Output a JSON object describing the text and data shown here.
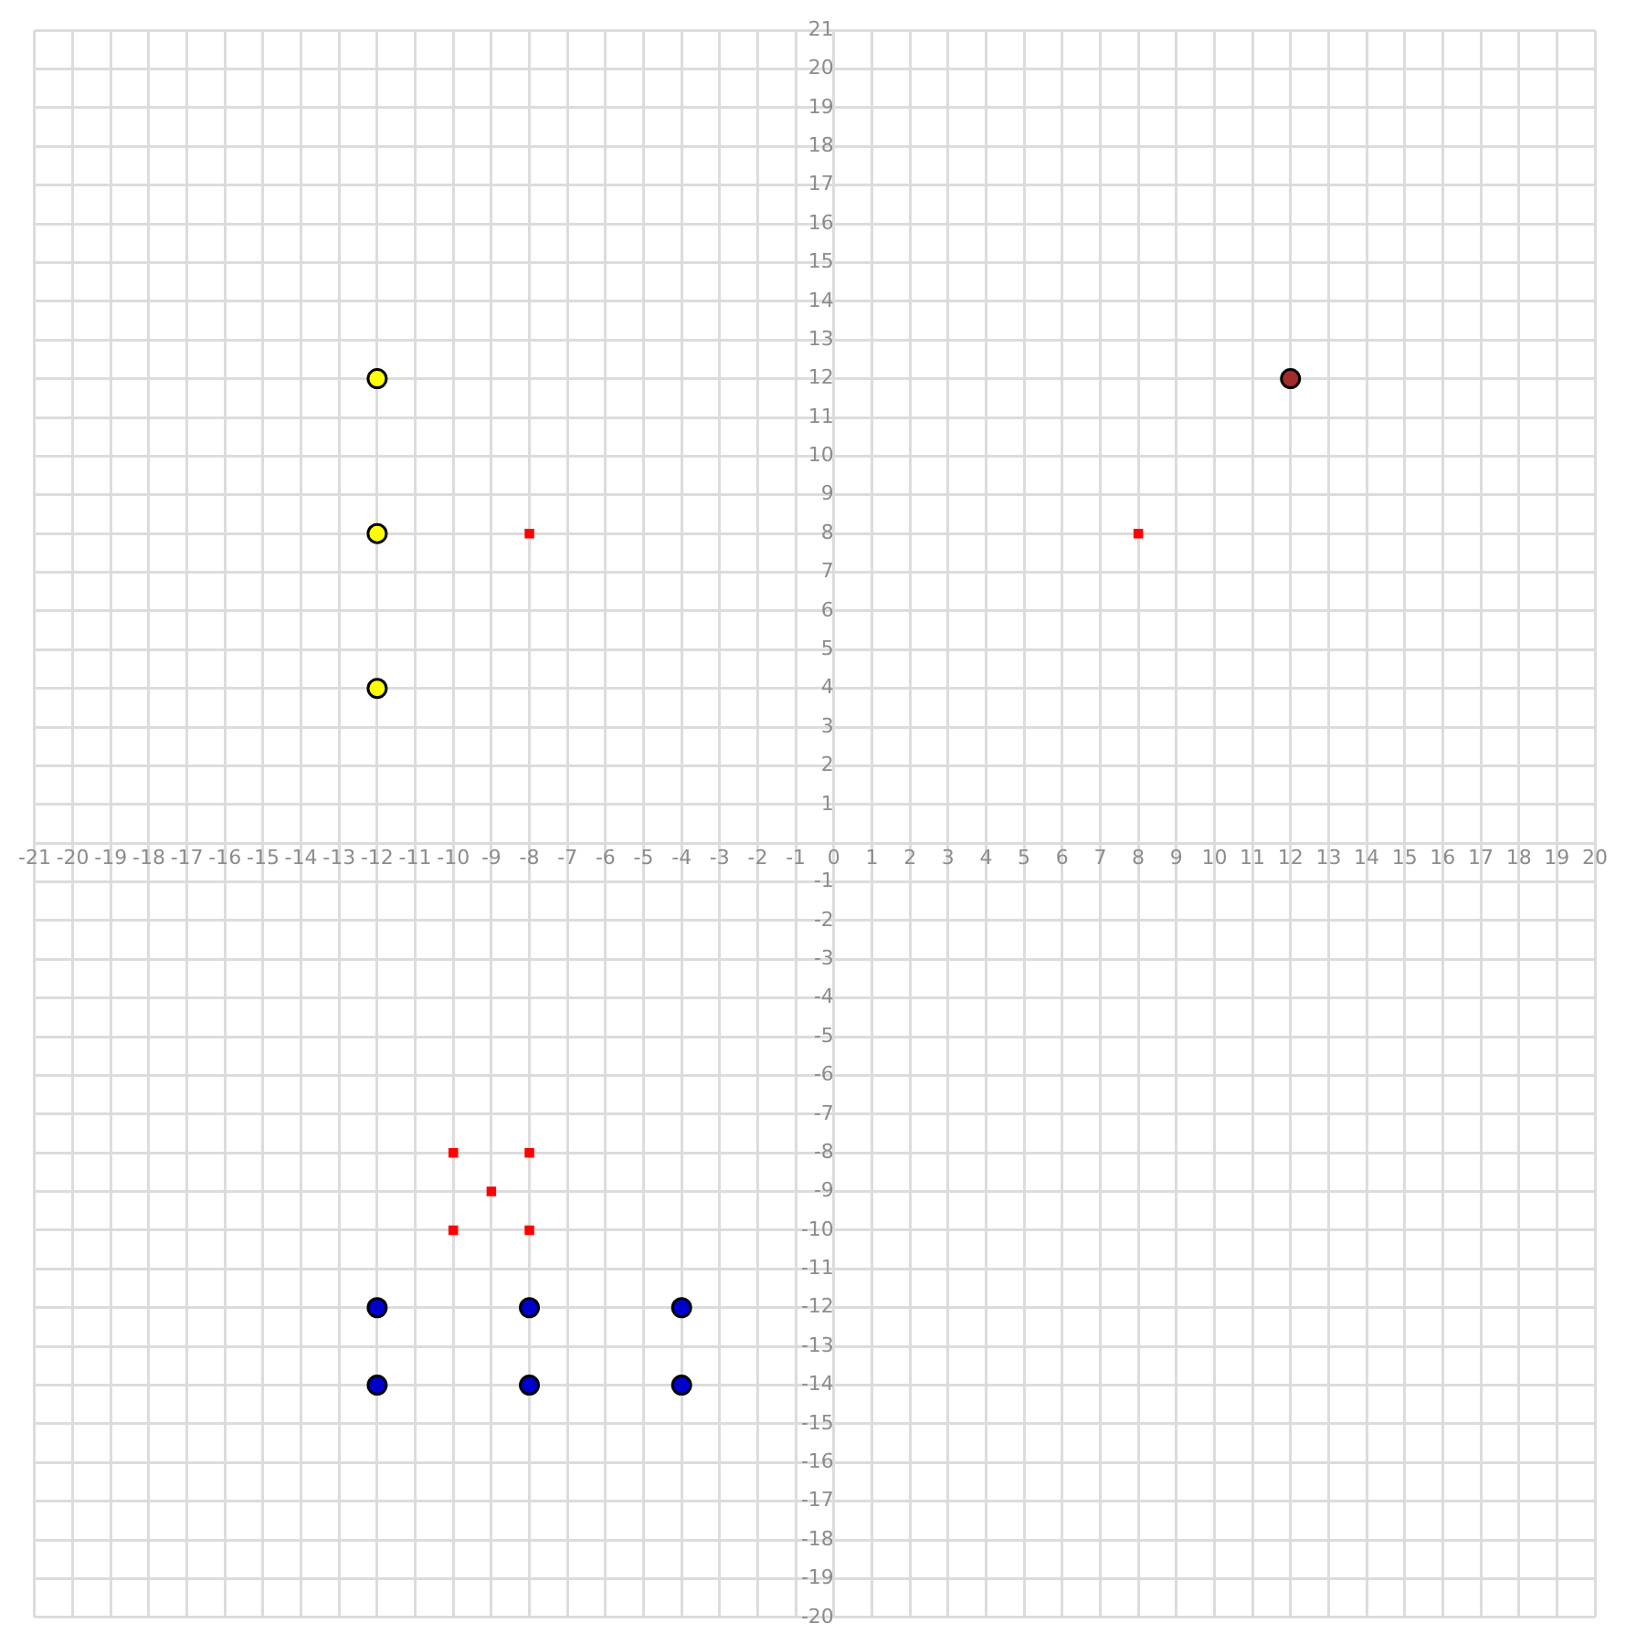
{
  "chart_data": {
    "type": "scatter",
    "xlim": [
      -21,
      20
    ],
    "ylim": [
      -20,
      21
    ],
    "xticks": [
      -21,
      -20,
      -19,
      -18,
      -17,
      -16,
      -15,
      -14,
      -13,
      -12,
      -11,
      -10,
      -9,
      -8,
      -7,
      -6,
      -5,
      -4,
      -3,
      -2,
      -1,
      0,
      1,
      2,
      3,
      4,
      5,
      6,
      7,
      8,
      9,
      10,
      11,
      12,
      13,
      14,
      15,
      16,
      17,
      18,
      19,
      20
    ],
    "yticks": [
      -20,
      -19,
      -18,
      -17,
      -16,
      -15,
      -14,
      -13,
      -12,
      -11,
      -10,
      -9,
      -8,
      -7,
      -6,
      -5,
      -4,
      -3,
      -2,
      -1,
      {
        "value": 0,
        "label": null
      },
      1,
      2,
      3,
      4,
      5,
      6,
      7,
      8,
      9,
      10,
      11,
      12,
      13,
      14,
      15,
      16,
      17,
      18,
      19,
      20,
      21
    ],
    "grid": true,
    "legend": false,
    "series": [
      {
        "color": "#ffff00",
        "marker": "circle",
        "x": [
          -12,
          -12,
          -12
        ],
        "values": [
          12,
          8,
          4
        ]
      },
      {
        "color": "#a52a2a",
        "marker": "circle",
        "x": [
          12
        ],
        "values": [
          12
        ]
      },
      {
        "color": "#0000cc",
        "marker": "circle",
        "x": [
          -12,
          -8,
          -4,
          -12,
          -8,
          -4
        ],
        "values": [
          -12,
          -12,
          -12,
          -14,
          -14,
          -14
        ]
      },
      {
        "color": "#ff0000",
        "marker": "square",
        "x": [
          -8,
          8,
          -10,
          -8,
          -9,
          -10,
          -8
        ],
        "values": [
          8,
          8,
          -8,
          -8,
          -9,
          -10,
          -10
        ]
      }
    ]
  }
}
